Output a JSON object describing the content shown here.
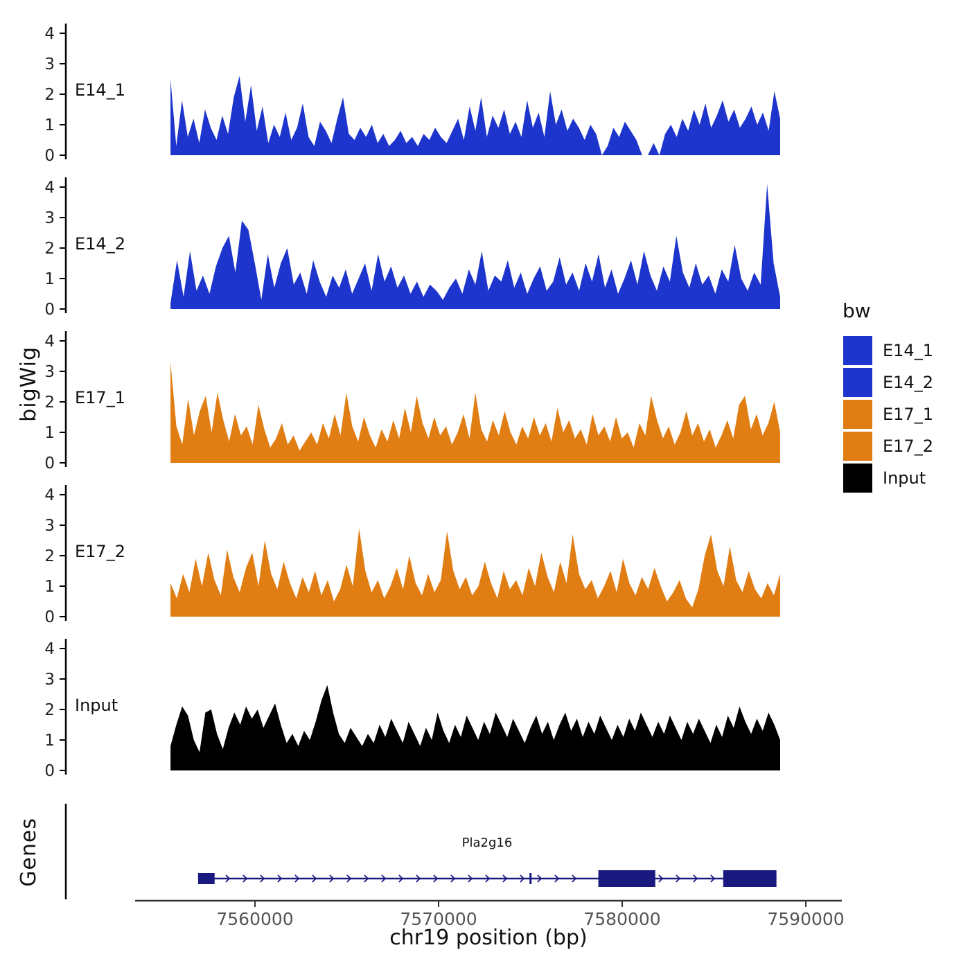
{
  "chart_data": {
    "type": "area",
    "title": "",
    "ylabel": "bigWig",
    "xlabel": "chr19 position (bp)",
    "genes_panel_label": "Genes",
    "x_domain": [
      7553470,
      7591960
    ],
    "x_ticks": [
      7560000,
      7570000,
      7580000,
      7590000
    ],
    "x_tick_labels": [
      "7560000",
      "7570000",
      "7580000",
      "7590000"
    ],
    "data_range_bp": [
      7555400,
      7588600
    ],
    "y_ticks": [
      0,
      1,
      2,
      3,
      4
    ],
    "ylim": [
      0,
      4.4
    ],
    "grid": false,
    "legend_position": "right",
    "tracks": [
      {
        "name": "E14_1",
        "color": "#1d35cd",
        "values": [
          2.5,
          0.3,
          1.8,
          0.6,
          1.2,
          0.4,
          1.5,
          0.9,
          0.5,
          1.3,
          0.7,
          1.9,
          2.6,
          1.1,
          2.3,
          0.8,
          1.6,
          0.4,
          1.0,
          0.6,
          1.4,
          0.5,
          0.9,
          1.7,
          0.6,
          0.3,
          1.1,
          0.8,
          0.4,
          1.2,
          1.9,
          0.7,
          0.5,
          0.9,
          0.6,
          1.0,
          0.4,
          0.7,
          0.3,
          0.5,
          0.8,
          0.4,
          0.6,
          0.3,
          0.7,
          0.5,
          0.9,
          0.6,
          0.4,
          0.8,
          1.2,
          0.5,
          1.6,
          0.8,
          1.9,
          0.6,
          1.3,
          0.9,
          1.5,
          0.7,
          1.1,
          0.6,
          1.8,
          0.9,
          1.4,
          0.6,
          2.1,
          1.0,
          1.5,
          0.8,
          1.2,
          0.9,
          0.5,
          1.0,
          0.7,
          0.0,
          0.3,
          0.9,
          0.6,
          1.1,
          0.8,
          0.5,
          0.0,
          0.0,
          0.4,
          0.0,
          0.7,
          1.0,
          0.6,
          1.2,
          0.8,
          1.5,
          1.0,
          1.7,
          0.9,
          1.3,
          1.8,
          1.1,
          1.5,
          0.9,
          1.2,
          1.6,
          1.0,
          1.4,
          0.8,
          2.1,
          1.2
        ]
      },
      {
        "name": "E14_2",
        "color": "#1d35cd",
        "values": [
          0.2,
          1.6,
          0.4,
          1.9,
          0.6,
          1.1,
          0.5,
          1.4,
          2.0,
          2.4,
          1.2,
          2.9,
          2.6,
          1.5,
          0.3,
          1.8,
          0.7,
          1.5,
          2.0,
          0.8,
          1.2,
          0.5,
          1.6,
          0.9,
          0.4,
          1.1,
          0.7,
          1.3,
          0.5,
          1.0,
          1.5,
          0.6,
          1.8,
          0.9,
          1.4,
          0.7,
          1.1,
          0.5,
          0.9,
          0.4,
          0.8,
          0.6,
          0.3,
          0.7,
          1.0,
          0.5,
          1.3,
          0.8,
          1.9,
          0.6,
          1.1,
          0.9,
          1.6,
          0.7,
          1.2,
          0.5,
          1.0,
          1.4,
          0.6,
          0.9,
          1.7,
          0.8,
          1.2,
          0.6,
          1.5,
          0.9,
          1.8,
          0.7,
          1.3,
          0.5,
          1.0,
          1.6,
          0.8,
          1.9,
          1.1,
          0.6,
          1.4,
          0.9,
          2.4,
          1.2,
          0.7,
          1.5,
          0.8,
          1.1,
          0.5,
          1.3,
          0.9,
          2.1,
          1.0,
          0.6,
          1.2,
          0.8,
          4.1,
          1.5,
          0.4
        ]
      },
      {
        "name": "E17_1",
        "color": "#e07d13",
        "values": [
          3.3,
          1.2,
          0.6,
          2.1,
          0.9,
          1.7,
          2.2,
          1.0,
          2.3,
          1.4,
          0.7,
          1.6,
          0.9,
          1.2,
          0.6,
          1.9,
          1.1,
          0.5,
          0.8,
          1.3,
          0.6,
          0.9,
          0.4,
          0.7,
          1.0,
          0.6,
          1.3,
          0.8,
          1.6,
          0.9,
          2.3,
          1.2,
          0.7,
          1.5,
          0.9,
          0.5,
          1.1,
          0.7,
          1.4,
          0.8,
          1.8,
          1.0,
          2.2,
          1.3,
          0.8,
          1.5,
          0.9,
          1.2,
          0.6,
          1.0,
          1.6,
          0.8,
          2.3,
          1.1,
          0.7,
          1.4,
          0.9,
          1.7,
          1.0,
          0.6,
          1.2,
          0.8,
          1.5,
          0.9,
          1.3,
          0.7,
          1.8,
          1.0,
          1.4,
          0.8,
          1.1,
          0.6,
          1.6,
          0.9,
          1.2,
          0.7,
          1.5,
          0.8,
          1.0,
          0.5,
          1.3,
          0.9,
          2.2,
          1.4,
          0.8,
          1.2,
          0.6,
          1.0,
          1.7,
          0.9,
          1.3,
          0.7,
          1.1,
          0.5,
          0.9,
          1.4,
          0.8,
          1.9,
          2.2,
          1.1,
          1.6,
          0.9,
          1.3,
          2.0,
          1.0
        ]
      },
      {
        "name": "E17_2",
        "color": "#e07d13",
        "values": [
          1.1,
          0.6,
          1.4,
          0.8,
          1.9,
          1.0,
          2.1,
          1.2,
          0.7,
          2.2,
          1.3,
          0.8,
          1.6,
          2.1,
          1.0,
          2.5,
          1.4,
          0.9,
          1.8,
          1.1,
          0.6,
          1.3,
          0.8,
          1.5,
          0.7,
          1.2,
          0.5,
          0.9,
          1.7,
          1.0,
          2.9,
          1.5,
          0.8,
          1.2,
          0.6,
          1.0,
          1.6,
          0.9,
          2.0,
          1.1,
          0.7,
          1.4,
          0.8,
          1.2,
          2.8,
          1.5,
          0.9,
          1.3,
          0.7,
          1.0,
          1.8,
          1.1,
          0.6,
          1.5,
          0.9,
          1.2,
          0.7,
          1.6,
          1.0,
          2.1,
          1.3,
          0.8,
          1.8,
          1.1,
          2.7,
          1.4,
          0.9,
          1.2,
          0.6,
          1.0,
          1.5,
          0.8,
          1.9,
          1.1,
          0.7,
          1.3,
          0.9,
          1.6,
          1.0,
          0.5,
          0.8,
          1.2,
          0.6,
          0.3,
          0.9,
          2.0,
          2.7,
          1.5,
          1.0,
          2.3,
          1.2,
          0.8,
          1.5,
          0.9,
          0.6,
          1.1,
          0.7,
          1.4
        ]
      },
      {
        "name": "Input",
        "color": "#000000",
        "values": [
          0.8,
          1.5,
          2.1,
          1.8,
          1.0,
          0.6,
          1.9,
          2.0,
          1.2,
          0.7,
          1.4,
          1.9,
          1.5,
          2.1,
          1.7,
          2.0,
          1.4,
          1.8,
          2.2,
          1.5,
          0.9,
          1.2,
          0.8,
          1.3,
          1.0,
          1.6,
          2.3,
          2.8,
          1.9,
          1.2,
          0.9,
          1.4,
          1.1,
          0.8,
          1.2,
          0.9,
          1.5,
          1.1,
          1.7,
          1.3,
          0.9,
          1.6,
          1.2,
          0.8,
          1.4,
          1.0,
          1.9,
          1.3,
          0.9,
          1.5,
          1.1,
          1.8,
          1.4,
          1.0,
          1.6,
          1.2,
          1.9,
          1.5,
          1.1,
          1.7,
          1.3,
          0.9,
          1.4,
          1.8,
          1.2,
          1.6,
          1.0,
          1.5,
          1.9,
          1.3,
          1.7,
          1.1,
          1.6,
          1.2,
          1.8,
          1.4,
          1.0,
          1.5,
          1.1,
          1.7,
          1.3,
          1.9,
          1.5,
          1.1,
          1.6,
          1.2,
          1.8,
          1.4,
          1.0,
          1.6,
          1.2,
          1.7,
          1.3,
          0.9,
          1.5,
          1.1,
          1.8,
          1.4,
          2.1,
          1.6,
          1.2,
          1.7,
          1.3,
          1.9,
          1.5,
          1.0
        ]
      }
    ],
    "gene_track": {
      "gene": {
        "name": "Pla2g16",
        "start": 7556900,
        "end": 7588400,
        "strand": "+",
        "color": "#191980",
        "exons": [
          [
            7556900,
            7557800
          ],
          [
            7574950,
            7575060
          ],
          [
            7578700,
            7581800
          ],
          [
            7585500,
            7588400
          ]
        ]
      }
    },
    "legend": {
      "title": "bw",
      "entries": [
        {
          "label": "E14_1",
          "color": "#1d35cd"
        },
        {
          "label": "E14_2",
          "color": "#1d35cd"
        },
        {
          "label": "E17_1",
          "color": "#e07d13"
        },
        {
          "label": "E17_2",
          "color": "#e07d13"
        },
        {
          "label": "Input",
          "color": "#000000"
        }
      ]
    }
  }
}
